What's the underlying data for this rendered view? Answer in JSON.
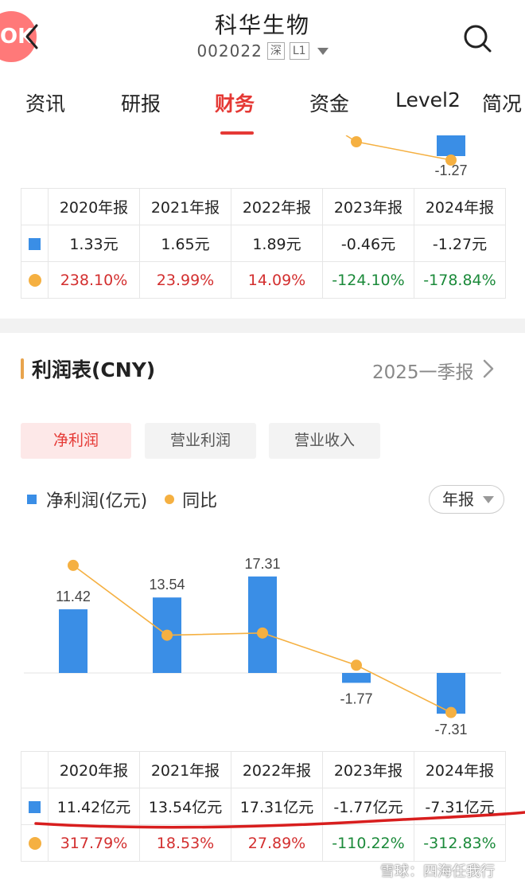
{
  "header": {
    "title": "科华生物",
    "code": "002022",
    "market_tag": "深",
    "level_tag": "L1",
    "badge_text": "OK"
  },
  "tabs": [
    {
      "label": "资讯",
      "active": false
    },
    {
      "label": "研报",
      "active": false
    },
    {
      "label": "财务",
      "active": true
    },
    {
      "label": "资金",
      "active": false
    },
    {
      "label": "Level2",
      "active": false
    },
    {
      "label": "简况",
      "active": false
    }
  ],
  "eps_section": {
    "chart_fragment": {
      "labels": [
        "-1.27"
      ]
    },
    "table": {
      "headers": [
        "2020年报",
        "2021年报",
        "2022年报",
        "2023年报",
        "2024年报"
      ],
      "values": [
        "1.33元",
        "1.65元",
        "1.89元",
        "-0.46元",
        "-1.27元"
      ],
      "yoy": [
        "238.10%",
        "23.99%",
        "14.09%",
        "-124.10%",
        "-178.84%"
      ]
    }
  },
  "income_section": {
    "title": "利润表(CNY)",
    "period_link": "2025一季报",
    "segments": [
      {
        "label": "净利润",
        "active": true
      },
      {
        "label": "营业利润",
        "active": false
      },
      {
        "label": "营业收入",
        "active": false
      }
    ],
    "legend": {
      "bar": "净利润(亿元)",
      "line": "同比"
    },
    "period_select": "年报",
    "table": {
      "headers": [
        "2020年报",
        "2021年报",
        "2022年报",
        "2023年报",
        "2024年报"
      ],
      "values": [
        "11.42亿元",
        "13.54亿元",
        "17.31亿元",
        "-1.77亿元",
        "-7.31亿元"
      ],
      "yoy": [
        "317.79%",
        "18.53%",
        "27.89%",
        "-110.22%",
        "-312.83%"
      ]
    }
  },
  "chart_data": {
    "type": "bar",
    "categories": [
      "2020年报",
      "2021年报",
      "2022年报",
      "2023年报",
      "2024年报"
    ],
    "series": [
      {
        "name": "净利润(亿元)",
        "type": "bar",
        "values": [
          11.42,
          13.54,
          17.31,
          -1.77,
          -7.31
        ]
      },
      {
        "name": "同比",
        "type": "line",
        "values": [
          317.79,
          18.53,
          27.89,
          -110.22,
          -312.83
        ]
      }
    ],
    "labels": [
      "11.42",
      "13.54",
      "17.31",
      "-1.77",
      "-7.31"
    ],
    "colors": {
      "bar": "#3a8ee6",
      "line": "#f5b041"
    }
  },
  "watermark": "雪球：四海任我行",
  "colors": {
    "accent": "#e53935",
    "positive": "#d32f2f",
    "negative": "#1b8a3a"
  }
}
